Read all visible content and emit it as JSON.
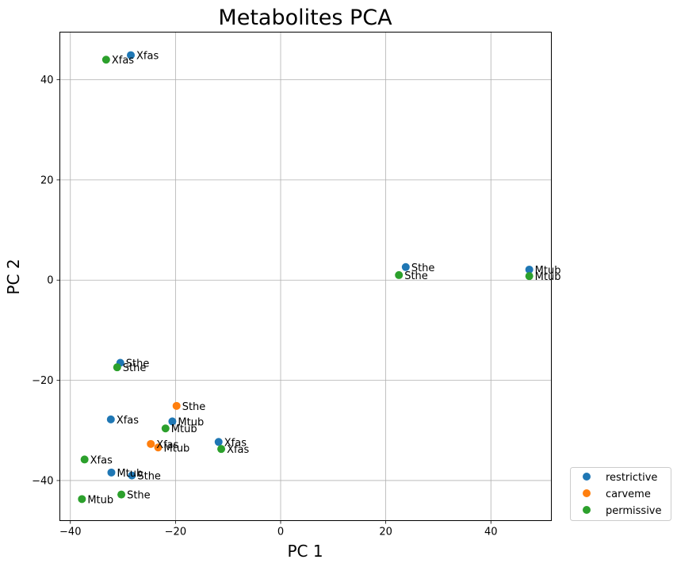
{
  "chart_data": {
    "type": "scatter",
    "title": "Metabolites PCA",
    "xlabel": "PC 1",
    "ylabel": "PC 2",
    "xlim": [
      -42,
      51.5
    ],
    "ylim": [
      -48,
      49.5
    ],
    "xticks": [
      -40,
      -20,
      0,
      20,
      40
    ],
    "yticks": [
      -40,
      -20,
      0,
      20,
      40
    ],
    "xtick_labels": [
      "−40",
      "−20",
      "0",
      "20",
      "40"
    ],
    "ytick_labels": [
      "−40",
      "−20",
      "0",
      "20",
      "40"
    ],
    "grid": true,
    "legend_position": "outside-lower-right",
    "series": [
      {
        "name": "restrictive",
        "color": "#1f77b4",
        "points": [
          {
            "x": -28.5,
            "y": 44.9,
            "label": "Xfas"
          },
          {
            "x": 23.8,
            "y": 2.6,
            "label": "Sthe"
          },
          {
            "x": 47.3,
            "y": 2.1,
            "label": "Mtub"
          },
          {
            "x": -30.5,
            "y": -16.5,
            "label": "Sthe"
          },
          {
            "x": -32.3,
            "y": -27.8,
            "label": "Xfas"
          },
          {
            "x": -20.6,
            "y": -28.2,
            "label": "Mtub"
          },
          {
            "x": -11.8,
            "y": -32.3,
            "label": "Xfas"
          },
          {
            "x": -32.2,
            "y": -38.4,
            "label": "Mtub"
          },
          {
            "x": -28.3,
            "y": -39.0,
            "label": "Sthe"
          }
        ]
      },
      {
        "name": "carveme",
        "color": "#ff7f0e",
        "points": [
          {
            "x": -19.8,
            "y": -25.1,
            "label": "Sthe"
          },
          {
            "x": -24.7,
            "y": -32.7,
            "label": "Xfas"
          },
          {
            "x": -23.3,
            "y": -33.4,
            "label": "Mtub"
          }
        ]
      },
      {
        "name": "permissive",
        "color": "#2ca02c",
        "points": [
          {
            "x": -33.2,
            "y": 44.0,
            "label": "Xfas"
          },
          {
            "x": 22.5,
            "y": 1.0,
            "label": "Sthe"
          },
          {
            "x": 47.3,
            "y": 0.8,
            "label": "Mtub"
          },
          {
            "x": -31.1,
            "y": -17.4,
            "label": "Sthe"
          },
          {
            "x": -21.9,
            "y": -29.6,
            "label": "Mtub"
          },
          {
            "x": -11.3,
            "y": -33.7,
            "label": "Xfas"
          },
          {
            "x": -37.3,
            "y": -35.8,
            "label": "Xfas"
          },
          {
            "x": -30.3,
            "y": -42.8,
            "label": "Sthe"
          },
          {
            "x": -37.8,
            "y": -43.7,
            "label": "Mtub"
          }
        ]
      }
    ]
  }
}
